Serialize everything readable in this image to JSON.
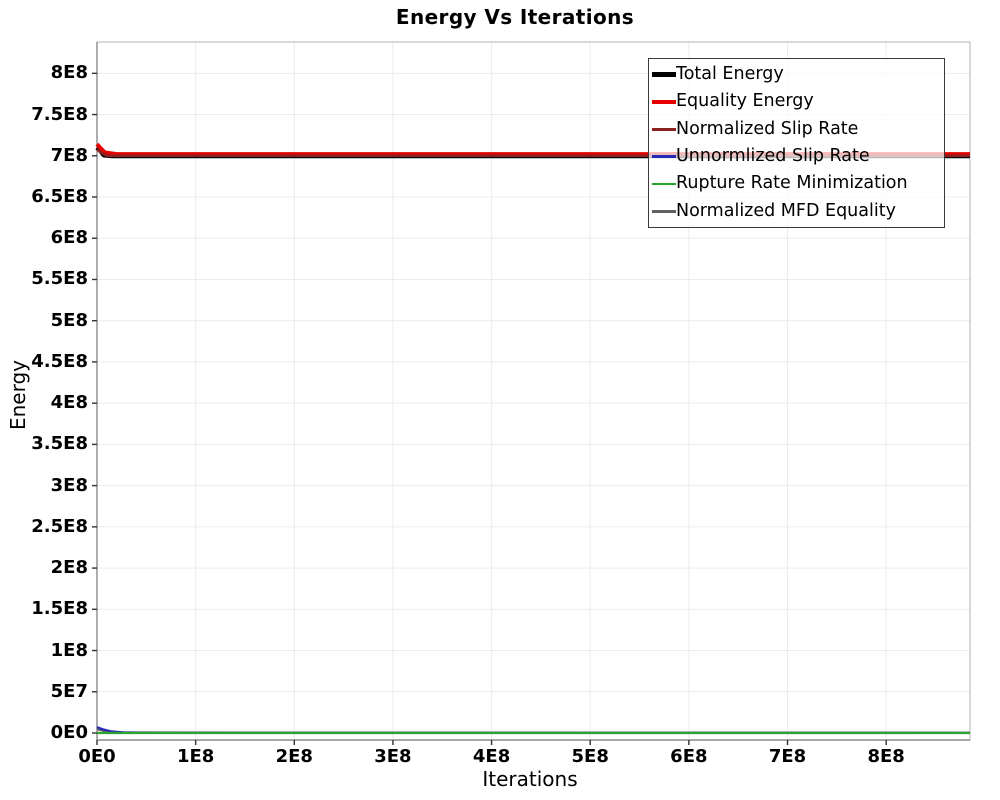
{
  "chart_data": {
    "type": "line",
    "title": "Energy Vs Iterations",
    "xlabel": "Iterations",
    "ylabel": "Energy",
    "xlim": [
      0,
      885000000
    ],
    "ylim": [
      -8500000,
      838000000
    ],
    "grid": true,
    "grid_color": "#ececec",
    "axis_border_color": "#b4b4b4",
    "axis_main_color": "#8a8a8a",
    "tick_color": "#333333",
    "x_tick_values": [
      0,
      100000000,
      200000000,
      300000000,
      400000000,
      500000000,
      600000000,
      700000000,
      800000000
    ],
    "x_tick_labels": [
      "0E0",
      "1E8",
      "2E8",
      "3E8",
      "4E8",
      "5E8",
      "6E8",
      "7E8",
      "8E8"
    ],
    "y_tick_values": [
      0,
      50000000,
      100000000,
      150000000,
      200000000,
      250000000,
      300000000,
      350000000,
      400000000,
      450000000,
      500000000,
      550000000,
      600000000,
      650000000,
      700000000,
      750000000,
      800000000
    ],
    "y_tick_labels": [
      "0E0",
      "5E7",
      "1E8",
      "1.5E8",
      "2E8",
      "2.5E8",
      "3E8",
      "3.5E8",
      "4E8",
      "4.5E8",
      "5E8",
      "5.5E8",
      "6E8",
      "6.5E8",
      "7E8",
      "7.5E8",
      "8E8"
    ],
    "legend": {
      "position": "top-right",
      "border_color": "#3a3a3a",
      "background": "rgba(255,255,255,0.72)"
    },
    "draw_order": [
      0,
      1,
      5,
      3,
      4,
      2
    ],
    "series": [
      {
        "name": "Total Energy",
        "color": "#000000",
        "width": 5,
        "points": [
          [
            0,
            710000000
          ],
          [
            3000000,
            707000000
          ],
          [
            7000000,
            701000000
          ],
          [
            15000000,
            700000000
          ],
          [
            885000000,
            700000000
          ]
        ]
      },
      {
        "name": "Equality Energy",
        "color": "#e60000",
        "width": 4,
        "points": [
          [
            0,
            714000000
          ],
          [
            3000000,
            710000000
          ],
          [
            8000000,
            704000000
          ],
          [
            20000000,
            702000000
          ],
          [
            885000000,
            702000000
          ]
        ]
      },
      {
        "name": "Normalized Slip Rate",
        "color": "#8b2121",
        "width": 2.6,
        "points": [
          [
            0,
            708000000
          ],
          [
            4000000,
            704000000
          ],
          [
            10000000,
            700000000
          ],
          [
            885000000,
            700000000
          ]
        ]
      },
      {
        "name": "Unnormlized Slip Rate",
        "color": "#2828b8",
        "width": 2.2,
        "points": [
          [
            0,
            7000000
          ],
          [
            6000000,
            4500000
          ],
          [
            14000000,
            2000000
          ],
          [
            28000000,
            600000
          ],
          [
            50000000,
            250000
          ],
          [
            885000000,
            200000
          ]
        ]
      },
      {
        "name": "Rupture Rate Minimization",
        "color": "#2da42d",
        "width": 2.2,
        "points": [
          [
            0,
            0
          ],
          [
            885000000,
            0
          ]
        ]
      },
      {
        "name": "Normalized MFD Equality",
        "color": "#616161",
        "width": 2,
        "points": [
          [
            0,
            4500000
          ],
          [
            8000000,
            2000000
          ],
          [
            20000000,
            700000
          ],
          [
            885000000,
            400000
          ]
        ]
      }
    ]
  }
}
